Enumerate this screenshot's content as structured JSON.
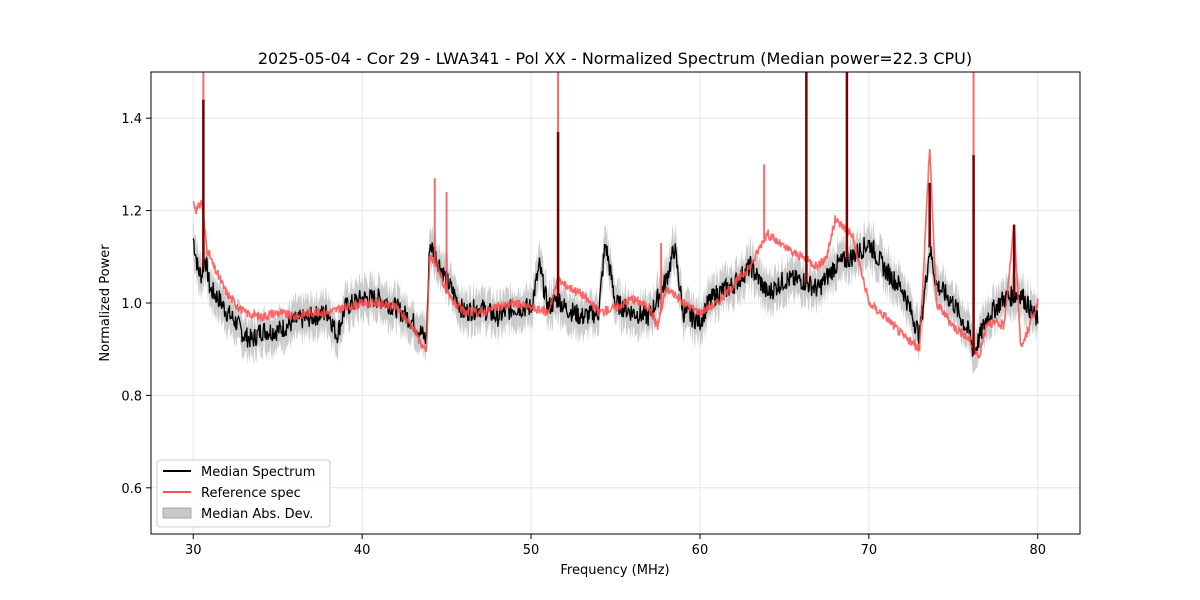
{
  "chart_data": {
    "type": "line",
    "title": "2025-05-04 - Cor 29 - LWA341 - Pol XX - Normalized Spectrum (Median power=22.3 CPU)",
    "xlabel": "Frequency (MHz)",
    "ylabel": "Normalized Power",
    "xlim": [
      27.5,
      82.5
    ],
    "ylim": [
      0.5,
      1.5
    ],
    "xticks": [
      30,
      40,
      50,
      60,
      70,
      80
    ],
    "yticks": [
      0.6,
      0.8,
      1.0,
      1.2,
      1.4
    ],
    "grid": true,
    "legend_position": "lower-left",
    "legend": [
      "Median Spectrum",
      "Reference spec",
      "Median Abs. Dev."
    ],
    "colors": {
      "median": "#000000",
      "reference": "#ff4d4d",
      "mad_fill": "#c8c8c8",
      "overlap": "#7a0000"
    },
    "series": [
      {
        "name": "Median Spectrum",
        "x": [
          30.0,
          30.3,
          30.5,
          30.7,
          31.0,
          31.5,
          32.0,
          32.5,
          33.0,
          33.5,
          34.0,
          35.0,
          36.0,
          37.0,
          38.0,
          38.5,
          39.0,
          40.0,
          41.0,
          42.0,
          43.0,
          43.8,
          44.0,
          44.5,
          45.0,
          46.0,
          47.0,
          48.0,
          49.0,
          50.0,
          50.5,
          51.0,
          51.6,
          52.0,
          53.0,
          54.0,
          54.4,
          55.0,
          56.0,
          57.0,
          58.0,
          58.5,
          59.0,
          60.0,
          60.5,
          61.0,
          62.0,
          63.0,
          64.0,
          65.0,
          66.0,
          67.0,
          68.0,
          69.0,
          70.0,
          71.0,
          72.0,
          73.0,
          73.6,
          74.0,
          75.0,
          76.0,
          76.2,
          77.0,
          78.0,
          79.0,
          80.0
        ],
        "values": [
          1.14,
          1.07,
          1.06,
          1.1,
          1.03,
          1.01,
          0.98,
          0.96,
          0.93,
          0.92,
          0.94,
          0.94,
          0.96,
          0.97,
          0.98,
          0.93,
          0.99,
          1.01,
          1.01,
          0.99,
          0.96,
          0.92,
          1.13,
          1.09,
          1.05,
          0.98,
          0.99,
          0.97,
          0.99,
          0.99,
          1.08,
          0.99,
          1.01,
          0.99,
          0.97,
          0.98,
          1.13,
          1.0,
          0.98,
          0.97,
          1.05,
          1.12,
          0.98,
          0.96,
          1.0,
          1.02,
          1.04,
          1.08,
          1.02,
          1.05,
          1.05,
          1.03,
          1.08,
          1.1,
          1.13,
          1.07,
          1.03,
          0.93,
          1.12,
          1.04,
          1.0,
          0.93,
          0.89,
          0.97,
          1.01,
          1.02,
          0.96
        ],
        "spikes": [
          {
            "x": 30.6,
            "y": 1.44
          },
          {
            "x": 51.6,
            "y": 1.37
          },
          {
            "x": 66.3,
            "y": 1.5
          },
          {
            "x": 68.7,
            "y": 1.5
          },
          {
            "x": 73.6,
            "y": 1.26
          },
          {
            "x": 76.2,
            "y": 1.32
          },
          {
            "x": 78.6,
            "y": 1.17
          }
        ]
      },
      {
        "name": "Reference spec",
        "x": [
          30.0,
          30.2,
          30.5,
          30.8,
          31.2,
          31.6,
          32.0,
          32.5,
          33.0,
          34.0,
          35.0,
          36.0,
          37.0,
          38.0,
          39.0,
          40.0,
          41.0,
          42.0,
          43.0,
          43.8,
          44.0,
          44.5,
          45.0,
          46.0,
          47.0,
          48.0,
          49.0,
          50.0,
          51.0,
          51.6,
          52.0,
          53.0,
          54.0,
          55.0,
          56.0,
          57.0,
          57.5,
          58.0,
          58.5,
          59.0,
          60.0,
          61.0,
          62.0,
          63.0,
          63.8,
          64.0,
          65.0,
          66.0,
          67.0,
          67.5,
          68.0,
          69.0,
          70.0,
          71.0,
          72.0,
          73.0,
          73.6,
          74.0,
          75.0,
          76.0,
          76.5,
          77.0,
          78.0,
          78.6,
          79.0,
          80.0
        ],
        "values": [
          1.22,
          1.2,
          1.22,
          1.12,
          1.08,
          1.05,
          1.02,
          1.0,
          0.98,
          0.97,
          0.98,
          0.97,
          0.98,
          0.98,
          0.99,
          1.0,
          1.0,
          0.99,
          0.95,
          0.89,
          1.1,
          1.08,
          1.02,
          0.98,
          0.98,
          0.99,
          1.0,
          0.99,
          0.98,
          1.05,
          1.04,
          1.02,
          0.98,
          0.99,
          1.01,
          0.99,
          0.95,
          1.03,
          1.02,
          1.0,
          0.98,
          1.0,
          1.04,
          1.08,
          1.14,
          1.15,
          1.12,
          1.1,
          1.08,
          1.1,
          1.18,
          1.15,
          1.0,
          0.97,
          0.93,
          0.9,
          1.34,
          1.0,
          0.95,
          0.92,
          0.88,
          0.96,
          0.95,
          1.17,
          0.9,
          1.0
        ],
        "spikes": [
          {
            "x": 30.6,
            "y": 1.5
          },
          {
            "x": 44.3,
            "y": 1.27
          },
          {
            "x": 45.0,
            "y": 1.24
          },
          {
            "x": 51.6,
            "y": 1.5
          },
          {
            "x": 57.7,
            "y": 1.13
          },
          {
            "x": 63.8,
            "y": 1.3
          },
          {
            "x": 66.3,
            "y": 1.5
          },
          {
            "x": 68.7,
            "y": 1.5
          },
          {
            "x": 76.2,
            "y": 1.5
          }
        ]
      },
      {
        "name": "Median Abs. Dev.",
        "band_halfwidth": 0.035
      }
    ]
  }
}
